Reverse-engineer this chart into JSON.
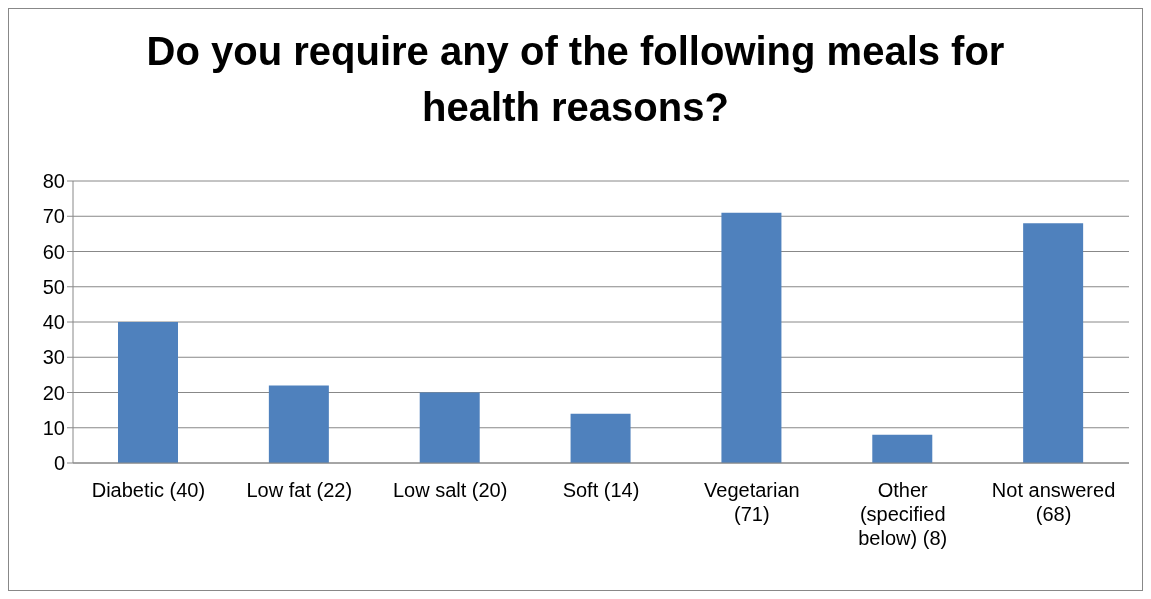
{
  "chart_data": {
    "type": "bar",
    "title": "Do you require any of the following meals for health reasons?",
    "categories": [
      "Diabetic (40)",
      "Low fat (22)",
      "Low salt (20)",
      "Soft (14)",
      "Vegetarian (71)",
      "Other (specified below) (8)",
      "Not answered (68)"
    ],
    "values": [
      40,
      22,
      20,
      14,
      71,
      8,
      68
    ],
    "color": "#4f81bd",
    "ylim": [
      0,
      80
    ],
    "yticks": [
      0,
      10,
      20,
      30,
      40,
      50,
      60,
      70,
      80
    ],
    "grid": "y",
    "legend": false
  }
}
